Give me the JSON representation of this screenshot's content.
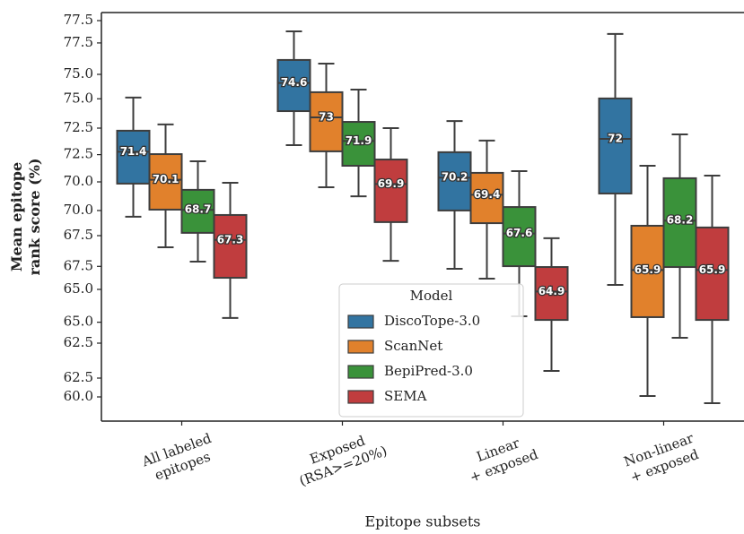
{
  "chart_data": {
    "type": "box",
    "ylabel": [
      "Mean epitope",
      "rank score (%)"
    ],
    "xlabel": "Epitope subsets",
    "categories": [
      [
        "All labeled",
        "epitopes"
      ],
      [
        "Exposed",
        "(RSA>=20%)"
      ],
      [
        "Linear",
        "+ exposed"
      ],
      [
        "Non-linear",
        "+ exposed"
      ]
    ],
    "ylim": [
      58.875,
      77.875
    ],
    "yticks": [
      {
        "value": 60,
        "label": "60.0"
      },
      {
        "value": 62.5,
        "label": "62.5"
      },
      {
        "value": 65,
        "label": "65.0"
      },
      {
        "value": 67.5,
        "label": "67.5"
      },
      {
        "value": 70,
        "label": "70.0"
      },
      {
        "value": 72.5,
        "label": "72.5"
      },
      {
        "value": 75,
        "label": "75.0"
      },
      {
        "value": 77.5,
        "label": "77.5"
      }
    ],
    "y2lim": [
      60.575,
      78.86
    ],
    "y2ticks": [
      {
        "value": 62.5,
        "label": "62.5"
      },
      {
        "value": 65,
        "label": "65.0"
      },
      {
        "value": 67.5,
        "label": "67.5"
      },
      {
        "value": 70,
        "label": "70.0"
      },
      {
        "value": 72.5,
        "label": "72.5"
      },
      {
        "value": 75,
        "label": "75.0"
      },
      {
        "value": 77.5,
        "label": "77.5"
      }
    ],
    "legend": {
      "title": "Model",
      "position": "lower center"
    },
    "series": [
      {
        "name": "DiscoTope-3.0",
        "color": "#3274a1",
        "whislo": [
          68.38,
          71.71,
          65.96,
          65.21
        ],
        "q1": [
          69.92,
          73.29,
          68.67,
          69.46
        ],
        "median": [
          71.4,
          74.6,
          70.2,
          72.0
        ],
        "q3": [
          72.38,
          75.67,
          71.38,
          73.88
        ],
        "whishi": [
          73.92,
          77.0,
          72.83,
          76.88
        ]
      },
      {
        "name": "ScanNet",
        "color": "#e1812c",
        "whislo": [
          66.96,
          69.75,
          65.5,
          60.04
        ],
        "q1": [
          68.71,
          71.42,
          68.08,
          63.71
        ],
        "median": [
          70.1,
          73.0,
          69.4,
          65.9
        ],
        "q3": [
          71.29,
          74.17,
          70.42,
          67.96
        ],
        "whishi": [
          72.67,
          75.5,
          71.92,
          70.75
        ]
      },
      {
        "name": "BepiPred-3.0",
        "color": "#3a923a",
        "whislo": [
          66.29,
          69.33,
          63.75,
          62.75
        ],
        "q1": [
          67.63,
          70.75,
          66.08,
          66.04
        ],
        "median": [
          68.7,
          71.9,
          67.6,
          68.2
        ],
        "q3": [
          69.63,
          72.79,
          68.83,
          70.17
        ],
        "whishi": [
          70.96,
          74.29,
          70.5,
          72.21
        ]
      },
      {
        "name": "SEMA",
        "color": "#c03d3e",
        "whislo": [
          63.67,
          66.33,
          61.21,
          59.71
        ],
        "q1": [
          65.54,
          68.13,
          63.58,
          63.58
        ],
        "median": [
          67.3,
          69.9,
          64.9,
          65.9
        ],
        "q3": [
          68.46,
          71.04,
          66.04,
          67.88
        ],
        "whishi": [
          69.96,
          72.5,
          67.38,
          70.29
        ]
      }
    ]
  }
}
